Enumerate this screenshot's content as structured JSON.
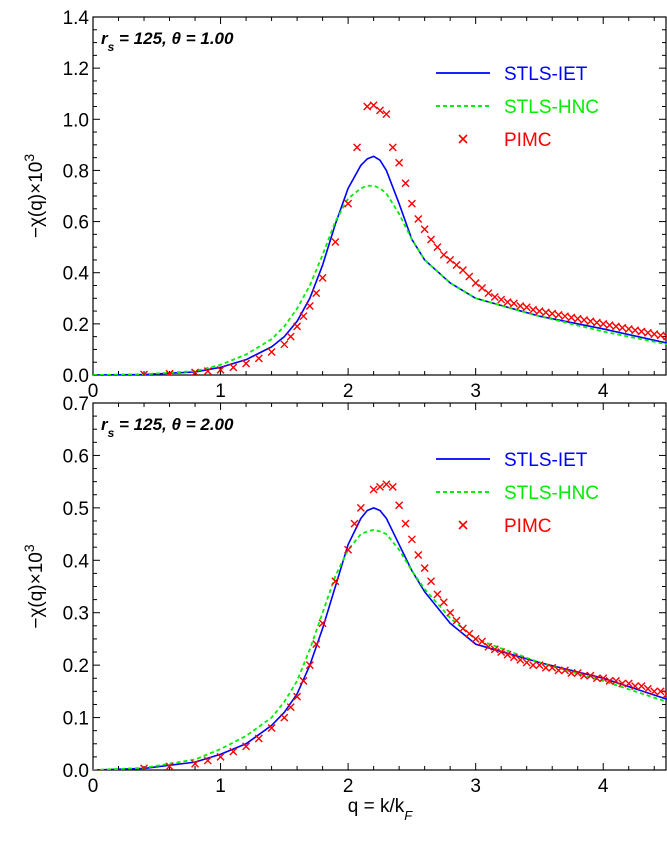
{
  "chart_data": [
    {
      "type": "line",
      "annotation": {
        "var": "r",
        "sub": "s",
        "value": " = 125, ",
        "theta": "θ",
        "theta_value": " = 1.00"
      },
      "ylabel": {
        "main": "−χ(q)×10",
        "sup": "3"
      },
      "xlabel": {
        "main": "q = k/k",
        "sub": "F"
      },
      "xlim": [
        0,
        4.5
      ],
      "ylim": [
        0,
        1.4
      ],
      "xticks": [
        "0",
        "1",
        "2",
        "3",
        "4"
      ],
      "yticks": [
        "0.0",
        "0.2",
        "0.4",
        "0.6",
        "0.8",
        "1.0",
        "1.2",
        "1.4"
      ],
      "legend_position": "top-right",
      "series": [
        {
          "name": "STLS-IET",
          "style": "solid",
          "color": "#0000ff",
          "x": [
            0,
            0.4,
            0.8,
            1.0,
            1.2,
            1.4,
            1.5,
            1.6,
            1.7,
            1.8,
            1.9,
            2.0,
            2.1,
            2.15,
            2.2,
            2.25,
            2.3,
            2.4,
            2.5,
            2.6,
            2.8,
            3.0,
            3.5,
            4.0,
            4.5
          ],
          "y": [
            0,
            0.002,
            0.012,
            0.03,
            0.06,
            0.11,
            0.15,
            0.21,
            0.3,
            0.43,
            0.59,
            0.73,
            0.82,
            0.845,
            0.855,
            0.84,
            0.8,
            0.67,
            0.53,
            0.45,
            0.36,
            0.3,
            0.23,
            0.18,
            0.125
          ]
        },
        {
          "name": "STLS-HNC",
          "style": "dashed",
          "color": "#00ee00",
          "x": [
            0,
            0.4,
            0.8,
            1.0,
            1.2,
            1.4,
            1.5,
            1.6,
            1.7,
            1.8,
            1.9,
            2.0,
            2.1,
            2.15,
            2.2,
            2.25,
            2.3,
            2.4,
            2.5,
            2.6,
            2.8,
            3.0,
            3.5,
            4.0,
            4.5
          ],
          "y": [
            0,
            0.003,
            0.015,
            0.04,
            0.08,
            0.14,
            0.19,
            0.26,
            0.35,
            0.47,
            0.6,
            0.69,
            0.73,
            0.74,
            0.74,
            0.73,
            0.71,
            0.63,
            0.53,
            0.45,
            0.36,
            0.3,
            0.23,
            0.17,
            0.12
          ]
        },
        {
          "name": "PIMC",
          "style": "marker-x",
          "color": "#ff0000",
          "x": [
            0.4,
            0.6,
            0.8,
            0.9,
            1.0,
            1.1,
            1.2,
            1.3,
            1.4,
            1.5,
            1.55,
            1.6,
            1.65,
            1.7,
            1.75,
            1.8,
            1.9,
            2.0,
            2.07,
            2.15,
            2.2,
            2.25,
            2.3,
            2.35,
            2.4,
            2.45,
            2.5,
            2.55,
            2.6,
            2.65,
            2.7,
            2.75,
            2.8,
            2.85,
            2.9,
            2.95,
            3.0,
            3.05,
            3.1,
            3.15,
            3.2,
            3.25,
            3.3,
            3.35,
            3.4,
            3.45,
            3.5,
            3.55,
            3.6,
            3.65,
            3.7,
            3.75,
            3.8,
            3.85,
            3.9,
            3.95,
            4.0,
            4.05,
            4.1,
            4.15,
            4.2,
            4.25,
            4.3,
            4.35,
            4.4,
            4.45,
            4.5
          ],
          "y": [
            0.002,
            0.005,
            0.01,
            0.015,
            0.02,
            0.03,
            0.045,
            0.065,
            0.09,
            0.12,
            0.15,
            0.19,
            0.23,
            0.27,
            0.32,
            0.38,
            0.52,
            0.67,
            0.89,
            1.05,
            1.055,
            1.035,
            1.02,
            0.89,
            0.83,
            0.75,
            0.67,
            0.61,
            0.57,
            0.53,
            0.5,
            0.47,
            0.45,
            0.43,
            0.41,
            0.385,
            0.36,
            0.34,
            0.32,
            0.305,
            0.295,
            0.285,
            0.28,
            0.27,
            0.265,
            0.255,
            0.25,
            0.245,
            0.24,
            0.235,
            0.23,
            0.225,
            0.22,
            0.215,
            0.21,
            0.205,
            0.2,
            0.195,
            0.19,
            0.185,
            0.18,
            0.175,
            0.17,
            0.165,
            0.16,
            0.155,
            0.15
          ]
        }
      ]
    },
    {
      "type": "line",
      "annotation": {
        "var": "r",
        "sub": "s",
        "value": " = 125, ",
        "theta": "θ",
        "theta_value": " = 2.00"
      },
      "ylabel": {
        "main": "−χ(q)×10",
        "sup": "3"
      },
      "xlabel": {
        "main": "q = k/k",
        "sub": "F"
      },
      "xlim": [
        0,
        4.5
      ],
      "ylim": [
        0,
        0.7
      ],
      "xticks": [
        "0",
        "1",
        "2",
        "3",
        "4"
      ],
      "yticks": [
        "0.0",
        "0.1",
        "0.2",
        "0.3",
        "0.4",
        "0.5",
        "0.6",
        "0.7"
      ],
      "legend_position": "top-right",
      "series": [
        {
          "name": "STLS-IET",
          "style": "solid",
          "color": "#0000ff",
          "x": [
            0,
            0.4,
            0.8,
            1.0,
            1.2,
            1.4,
            1.5,
            1.6,
            1.7,
            1.8,
            1.9,
            2.0,
            2.1,
            2.15,
            2.2,
            2.25,
            2.3,
            2.4,
            2.5,
            2.6,
            2.8,
            3.0,
            3.5,
            4.0,
            4.5
          ],
          "y": [
            0,
            0.003,
            0.015,
            0.03,
            0.05,
            0.085,
            0.11,
            0.145,
            0.2,
            0.27,
            0.35,
            0.43,
            0.48,
            0.495,
            0.5,
            0.495,
            0.48,
            0.43,
            0.38,
            0.34,
            0.28,
            0.24,
            0.205,
            0.175,
            0.135
          ]
        },
        {
          "name": "STLS-HNC",
          "style": "dashed",
          "color": "#00ee00",
          "x": [
            0,
            0.4,
            0.8,
            1.0,
            1.2,
            1.4,
            1.5,
            1.6,
            1.7,
            1.8,
            1.9,
            2.0,
            2.1,
            2.15,
            2.2,
            2.25,
            2.3,
            2.4,
            2.5,
            2.6,
            2.8,
            3.0,
            3.5,
            4.0,
            4.5
          ],
          "y": [
            0,
            0.004,
            0.02,
            0.04,
            0.065,
            0.1,
            0.13,
            0.17,
            0.23,
            0.3,
            0.37,
            0.42,
            0.45,
            0.455,
            0.458,
            0.455,
            0.45,
            0.42,
            0.38,
            0.345,
            0.29,
            0.25,
            0.205,
            0.17,
            0.13
          ]
        },
        {
          "name": "PIMC",
          "style": "marker-x",
          "color": "#ff0000",
          "x": [
            0.4,
            0.6,
            0.8,
            0.9,
            1.0,
            1.1,
            1.2,
            1.3,
            1.4,
            1.5,
            1.55,
            1.6,
            1.65,
            1.7,
            1.75,
            1.8,
            1.9,
            2.0,
            2.05,
            2.1,
            2.2,
            2.25,
            2.3,
            2.35,
            2.4,
            2.45,
            2.5,
            2.55,
            2.6,
            2.65,
            2.7,
            2.75,
            2.8,
            2.85,
            2.9,
            2.95,
            3.0,
            3.05,
            3.1,
            3.15,
            3.2,
            3.25,
            3.3,
            3.35,
            3.4,
            3.45,
            3.5,
            3.55,
            3.6,
            3.65,
            3.7,
            3.75,
            3.8,
            3.85,
            3.9,
            3.95,
            4.0,
            4.05,
            4.1,
            4.15,
            4.2,
            4.25,
            4.3,
            4.35,
            4.4,
            4.45,
            4.5
          ],
          "y": [
            0.003,
            0.007,
            0.012,
            0.018,
            0.025,
            0.035,
            0.045,
            0.06,
            0.08,
            0.1,
            0.12,
            0.14,
            0.17,
            0.2,
            0.24,
            0.28,
            0.36,
            0.42,
            0.47,
            0.5,
            0.535,
            0.54,
            0.545,
            0.54,
            0.505,
            0.47,
            0.44,
            0.41,
            0.385,
            0.36,
            0.335,
            0.32,
            0.3,
            0.285,
            0.27,
            0.26,
            0.25,
            0.245,
            0.235,
            0.23,
            0.225,
            0.22,
            0.215,
            0.21,
            0.205,
            0.2,
            0.2,
            0.195,
            0.195,
            0.19,
            0.19,
            0.185,
            0.185,
            0.18,
            0.18,
            0.175,
            0.175,
            0.17,
            0.17,
            0.165,
            0.165,
            0.16,
            0.16,
            0.155,
            0.15,
            0.15,
            0.145
          ]
        }
      ]
    }
  ]
}
